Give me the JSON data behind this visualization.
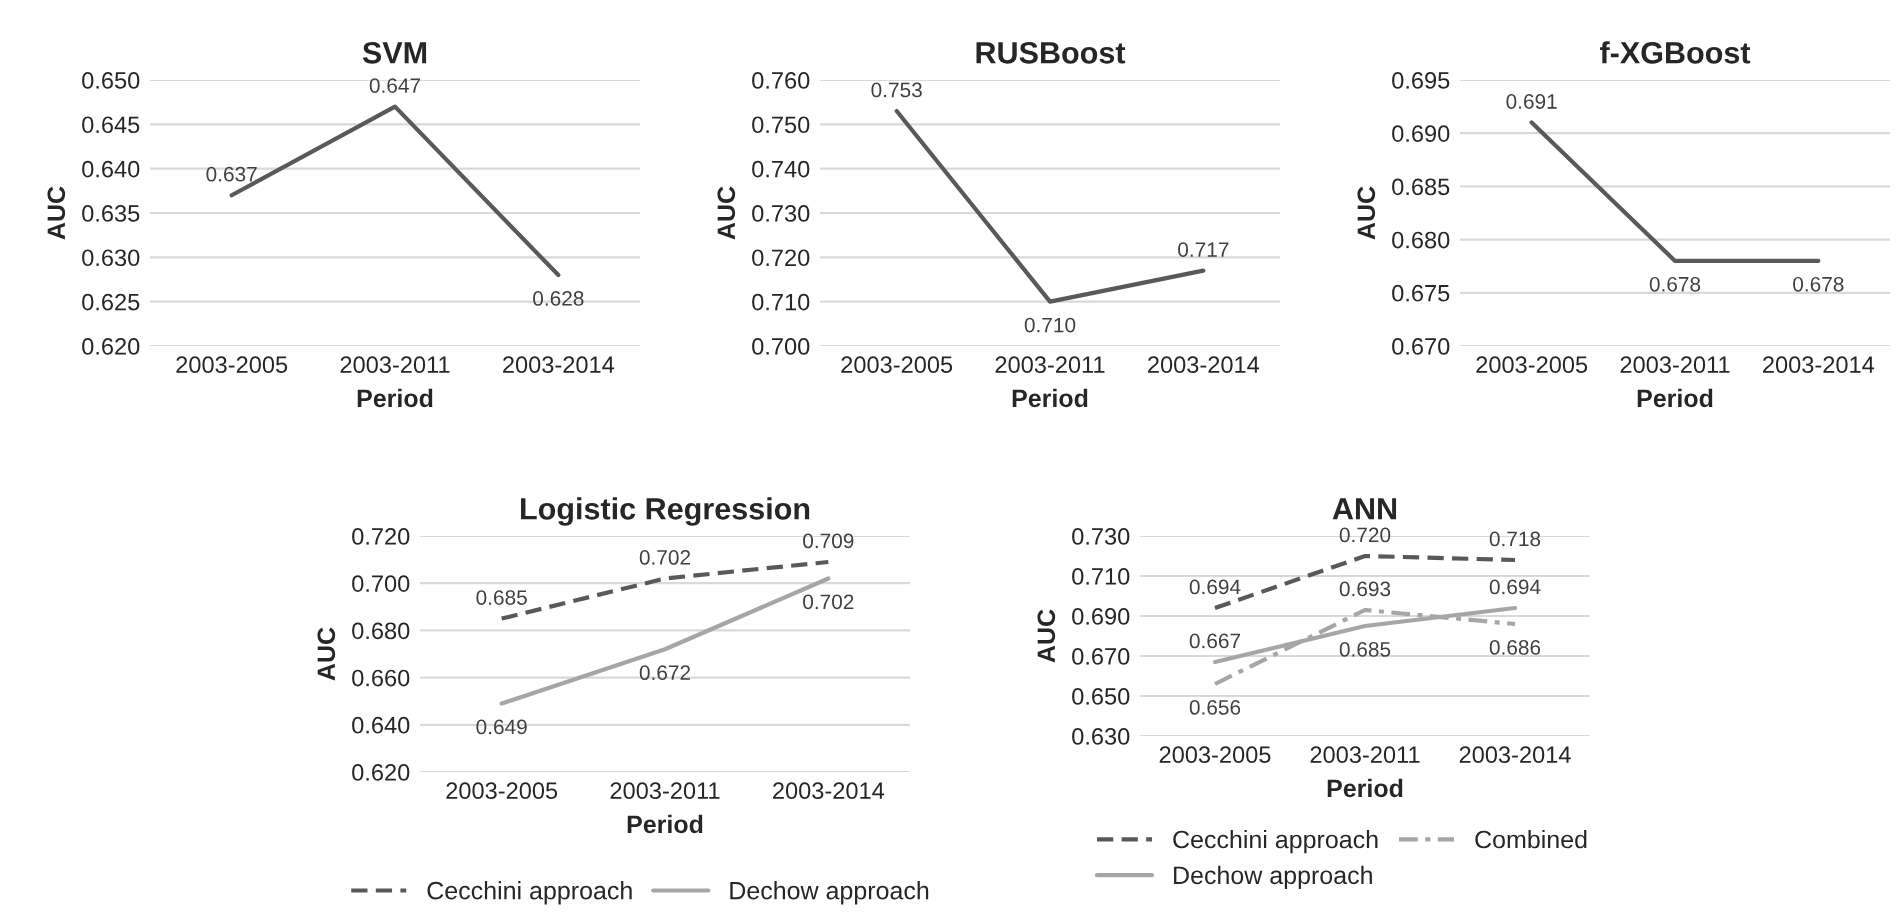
{
  "chart_data": [
    {
      "type": "line",
      "title": "SVM",
      "xlabel": "Period",
      "ylabel": "AUC",
      "categories": [
        "2003-2005",
        "2003-2011",
        "2003-2014"
      ],
      "series": [
        {
          "color": "#595959",
          "values": [
            0.637,
            0.647,
            0.628
          ]
        }
      ],
      "ylim": [
        0.62,
        0.65
      ],
      "yticks": [
        {
          "value": 0.62,
          "label": "0.620"
        },
        {
          "value": 0.625,
          "label": "0.625"
        },
        {
          "value": 0.63,
          "label": "0.630"
        },
        {
          "value": 0.635,
          "label": "0.635"
        },
        {
          "value": 0.64,
          "label": "0.640"
        },
        {
          "value": 0.645,
          "label": "0.645"
        },
        {
          "value": 0.65,
          "label": "0.650"
        }
      ],
      "grid": "y",
      "data_labels": true,
      "line_style": "solid",
      "marker": "none",
      "legend": false
    },
    {
      "type": "line",
      "title": "RUSBoost",
      "xlabel": "Period",
      "ylabel": "AUC",
      "categories": [
        "2003-2005",
        "2003-2011",
        "2003-2014"
      ],
      "series": [
        {
          "color": "#595959",
          "values": [
            0.753,
            0.71,
            0.717
          ],
          "value_labels": [
            "0.753",
            "0.710",
            "0.717"
          ]
        }
      ],
      "ylim": [
        0.7,
        0.76
      ],
      "yticks": [
        {
          "value": 0.7,
          "label": "0.700"
        },
        {
          "value": 0.71,
          "label": "0.710"
        },
        {
          "value": 0.72,
          "label": "0.720"
        },
        {
          "value": 0.73,
          "label": "0.730"
        },
        {
          "value": 0.74,
          "label": "0.740"
        },
        {
          "value": 0.75,
          "label": "0.750"
        },
        {
          "value": 0.76,
          "label": "0.760"
        }
      ],
      "grid": "y",
      "line_style": "solid",
      "marker": "none",
      "legend": false
    },
    {
      "type": "line",
      "title": "f-XGBoost",
      "xlabel": "Period",
      "ylabel": "AUC",
      "categories": [
        "2003-2005",
        "2003-2011",
        "2003-2014"
      ],
      "series": [
        {
          "color": "#595959",
          "values": [
            0.691,
            0.678,
            0.678
          ]
        }
      ],
      "ylim": [
        0.67,
        0.695
      ],
      "yticks": [
        {
          "value": 0.67,
          "label": "0.670"
        },
        {
          "value": 0.675,
          "label": "0.675"
        },
        {
          "value": 0.68,
          "label": "0.680"
        },
        {
          "value": 0.685,
          "label": "0.685"
        },
        {
          "value": 0.69,
          "label": "0.690"
        },
        {
          "value": 0.695,
          "label": "0.695"
        }
      ],
      "grid": "y",
      "data_labels": true,
      "line_style": "solid",
      "marker": "none",
      "legend": false
    },
    {
      "type": "line",
      "title": "Logistic Regression",
      "xlabel": "Period",
      "ylabel": "AUC",
      "categories": [
        "2003-2005",
        "2003-2011",
        "2003-2014"
      ],
      "series": [
        {
          "name": "Cecchini approach",
          "color": "#595959",
          "line_style": "dashed",
          "values": [
            0.685,
            0.702,
            0.709
          ]
        },
        {
          "name": "Dechow approach",
          "color": "#a6a6a6",
          "line_style": "solid",
          "values": [
            0.649,
            0.672,
            0.702
          ]
        }
      ],
      "ylim": [
        0.62,
        0.72
      ],
      "yticks": [
        {
          "value": 0.62,
          "label": "0.620"
        },
        {
          "value": 0.64,
          "label": "0.640"
        },
        {
          "value": 0.66,
          "label": "0.660"
        },
        {
          "value": 0.68,
          "label": "0.680"
        },
        {
          "value": 0.7,
          "label": "0.700"
        },
        {
          "value": 0.72,
          "label": "0.720"
        }
      ],
      "grid": "y",
      "data_labels": true,
      "marker": "none",
      "legend": "bottom"
    },
    {
      "type": "line",
      "title": "ANN",
      "xlabel": "Period",
      "ylabel": "AUC",
      "categories": [
        "2003-2005",
        "2003-2011",
        "2003-2014"
      ],
      "series": [
        {
          "name": "Cecchini approach",
          "color": "#595959",
          "line_style": "dashed",
          "values": [
            0.694,
            0.72,
            0.718
          ],
          "value_labels": [
            "0.694",
            "0.720",
            "0.718"
          ]
        },
        {
          "name": "Dechow approach",
          "color": "#a6a6a6",
          "line_style": "solid",
          "values": [
            0.667,
            0.685,
            0.694
          ],
          "value_labels": [
            "0.667",
            "0.685",
            "0.694"
          ]
        },
        {
          "name": "Combined",
          "color": "#a6a6a6",
          "line_style": "dashdot",
          "values": [
            0.656,
            0.693,
            0.686
          ],
          "value_labels": [
            "0.656",
            "0.693",
            "0.686"
          ]
        }
      ],
      "ylim": [
        0.63,
        0.73
      ],
      "yticks": [
        {
          "value": 0.63,
          "label": "0.630"
        },
        {
          "value": 0.65,
          "label": "0.650"
        },
        {
          "value": 0.67,
          "label": "0.670"
        },
        {
          "value": 0.69,
          "label": "0.690"
        },
        {
          "value": 0.71,
          "label": "0.710"
        },
        {
          "value": 0.73,
          "label": "0.730"
        }
      ],
      "grid": "y",
      "marker": "none",
      "legend": "bottom"
    }
  ]
}
